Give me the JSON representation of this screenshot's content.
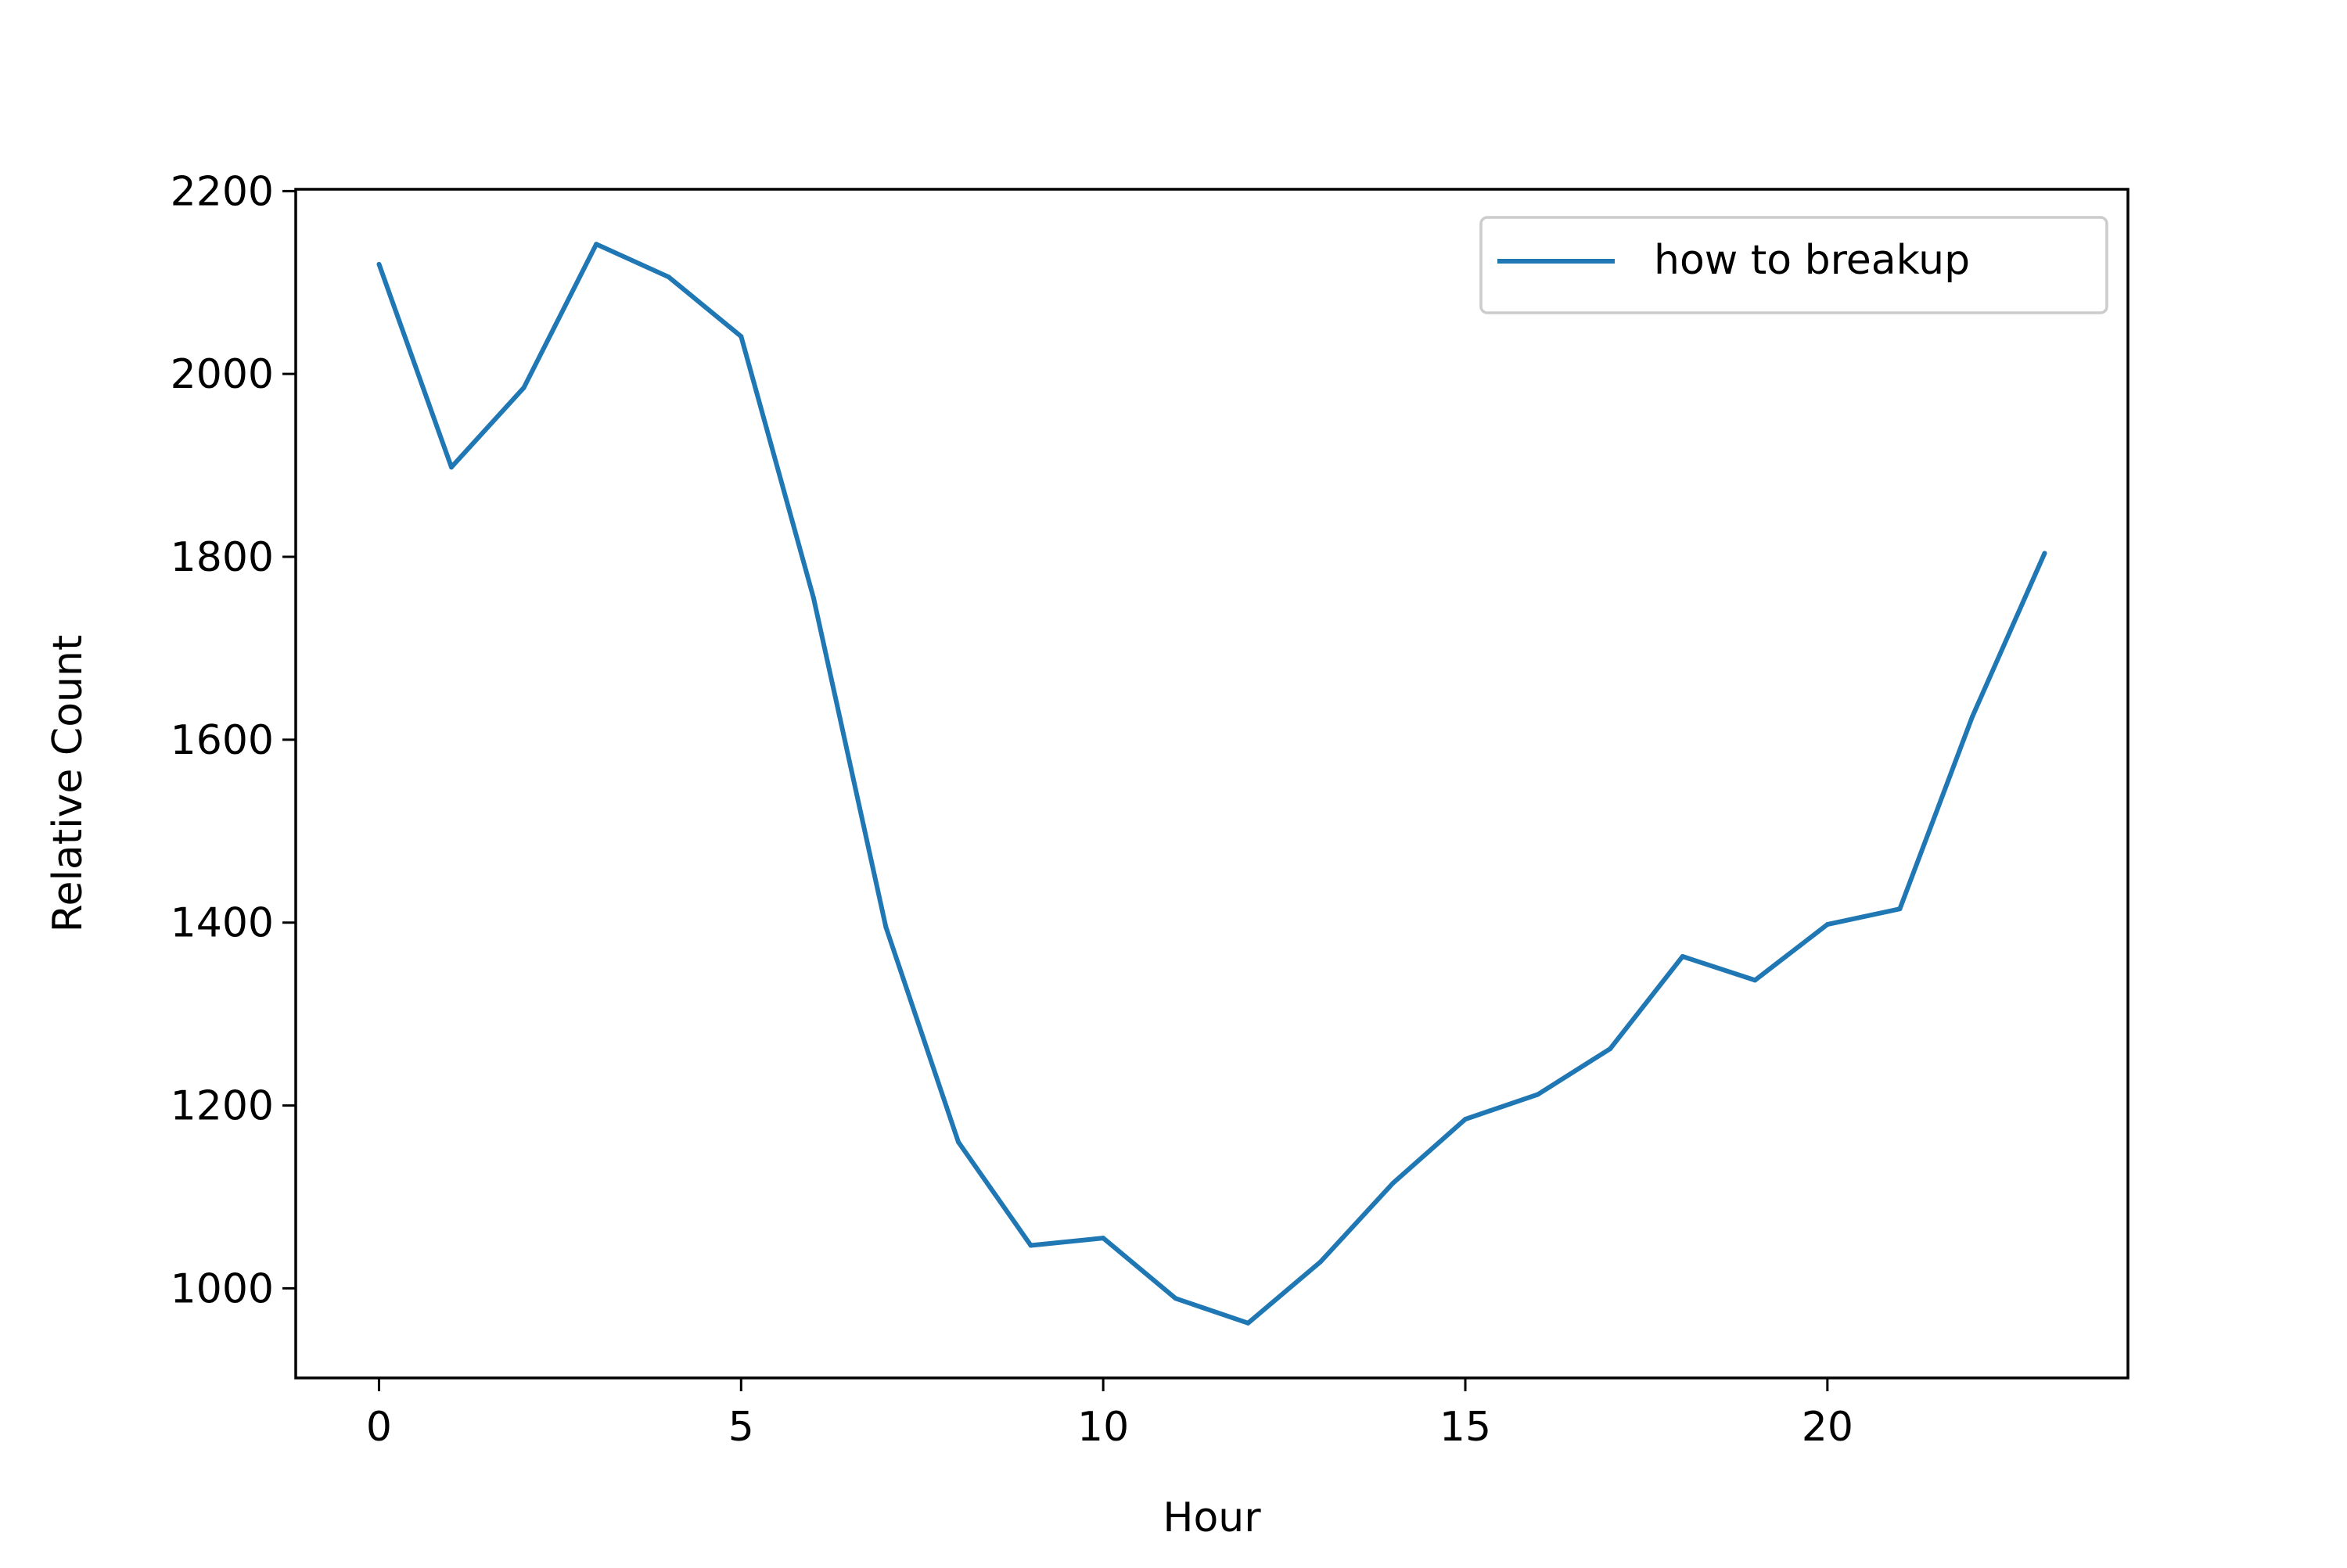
{
  "chart_data": {
    "type": "line",
    "title": "",
    "xlabel": "Hour",
    "ylabel": "Relative Count",
    "x": [
      0,
      1,
      2,
      3,
      4,
      5,
      6,
      7,
      8,
      9,
      10,
      11,
      12,
      13,
      14,
      15,
      16,
      17,
      18,
      19,
      20,
      21,
      22,
      23
    ],
    "series": [
      {
        "name": "how to breakup",
        "color": "#1f77b4",
        "values": [
          2120,
          1898,
          1985,
          2142,
          2106,
          2041,
          1755,
          1395,
          1160,
          1047,
          1055,
          989,
          962,
          1029,
          1115,
          1185,
          1212,
          1262,
          1363,
          1337,
          1398,
          1415,
          1625,
          1804
        ]
      }
    ],
    "xlim": [
      -1.15,
      24.15
    ],
    "ylim": [
      902,
      2202
    ],
    "xticks": [
      0,
      5,
      10,
      15,
      20
    ],
    "yticks": [
      1000,
      1200,
      1400,
      1600,
      1800,
      2000,
      2200
    ],
    "grid": false,
    "legend_position": "top-right"
  }
}
